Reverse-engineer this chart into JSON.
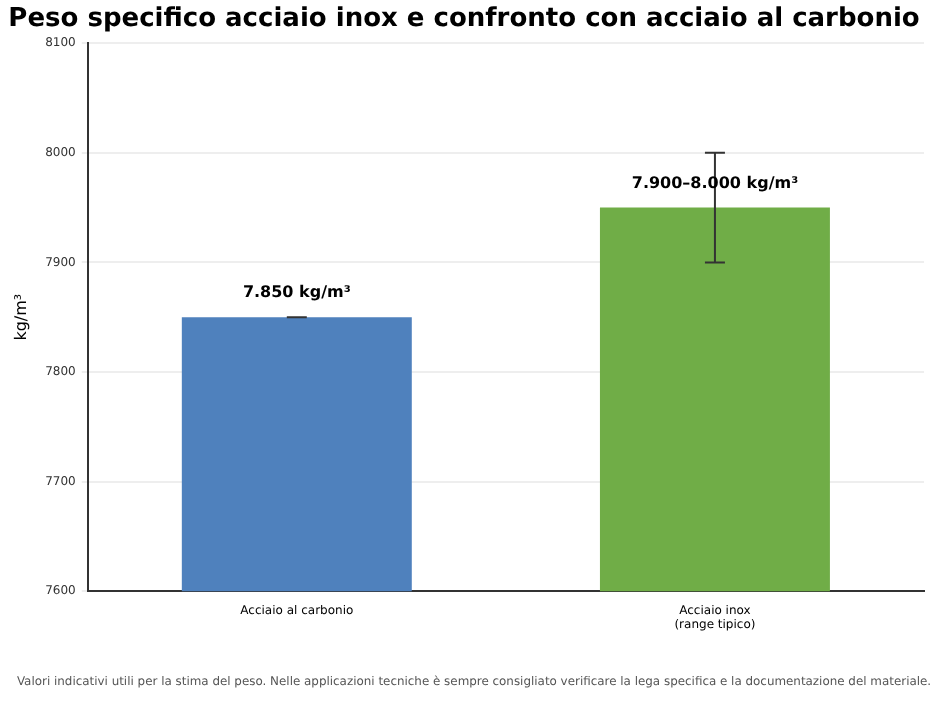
{
  "chart_data": {
    "type": "bar",
    "title": "Peso specifico acciaio inox e confronto con acciaio al carbonio",
    "ylabel": "kg/m³",
    "categories": [
      "Acciaio al carbonio",
      "Acciaio inox\n(range tipico)"
    ],
    "values": [
      7850,
      7950
    ],
    "colors": [
      "#4f81bd",
      "#70ad47"
    ],
    "errors": [
      0,
      50
    ],
    "value_labels": [
      "7.850 kg/m³",
      "7.900–8.000 kg/m³"
    ],
    "ylim": [
      7600,
      8100
    ],
    "yticks": [
      7600,
      7700,
      7800,
      7900,
      8000,
      8100
    ],
    "grid": "y",
    "legend": false,
    "annotations": [
      "Valori indicativi utili per la stima del peso. Nelle applicazioni tecniche è sempre consigliato verificare la lega specifica e la documentazione del materiale."
    ]
  }
}
